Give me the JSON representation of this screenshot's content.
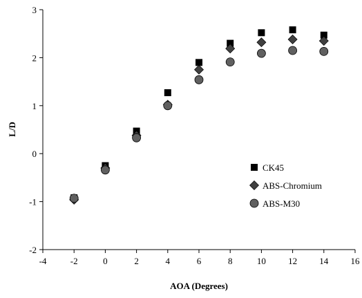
{
  "chart_data": {
    "type": "scatter",
    "title": "",
    "xlabel": "AOA (Degrees)",
    "ylabel": "L/D",
    "xlim": [
      -4,
      16
    ],
    "ylim": [
      -2,
      3
    ],
    "xticks": [
      -4,
      -2,
      0,
      2,
      4,
      6,
      8,
      10,
      12,
      14,
      16
    ],
    "yticks": [
      -2,
      -1,
      0,
      1,
      2,
      3
    ],
    "grid": false,
    "legend_position": "bottom-right",
    "series": [
      {
        "name": "CK45",
        "marker": "square",
        "color": "#000000",
        "x": [
          -2,
          0,
          2,
          4,
          6,
          8,
          10,
          12,
          14
        ],
        "y": [
          -0.92,
          -0.25,
          0.47,
          1.27,
          1.9,
          2.3,
          2.52,
          2.58,
          2.47
        ]
      },
      {
        "name": "ABS-Chromium",
        "marker": "diamond",
        "color": "#404040",
        "x": [
          -2,
          0,
          2,
          4,
          6,
          8,
          10,
          12,
          14
        ],
        "y": [
          -0.96,
          -0.3,
          0.38,
          1.02,
          1.75,
          2.19,
          2.32,
          2.38,
          2.35
        ]
      },
      {
        "name": "ABS-M30",
        "marker": "circle",
        "color": "#606060",
        "x": [
          -2,
          0,
          2,
          4,
          6,
          8,
          10,
          12,
          14
        ],
        "y": [
          -0.93,
          -0.34,
          0.33,
          1.0,
          1.54,
          1.91,
          2.09,
          2.15,
          2.13
        ]
      }
    ]
  }
}
